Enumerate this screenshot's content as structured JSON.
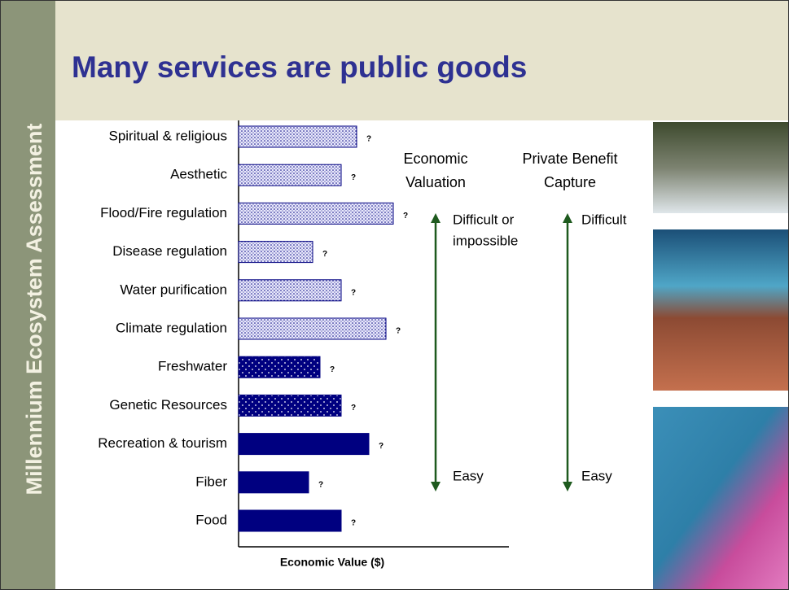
{
  "slide": {
    "title": "Many services are public goods",
    "sidebar": "Millennium Ecosystem Assessment"
  },
  "chart_data": {
    "type": "bar",
    "orientation": "horizontal",
    "categories": [
      "Spiritual & religious",
      "Aesthetic",
      "Flood/Fire regulation",
      "Disease regulation",
      "Water purification",
      "Climate regulation",
      "Freshwater",
      "Genetic Resources",
      "Recreation & tourism",
      "Fiber",
      "Food"
    ],
    "values": [
      145,
      126,
      190,
      91,
      126,
      181,
      100,
      126,
      160,
      86,
      126
    ],
    "value_labels": [
      "?",
      "?",
      "?",
      "?",
      "?",
      "?",
      "?",
      "?",
      "?",
      "?",
      "?"
    ],
    "fills": [
      "light-dotted",
      "light-dotted",
      "light-dotted",
      "light-dotted",
      "light-dotted",
      "light-dotted",
      "dark-dotted",
      "dark-dotted",
      "solid",
      "solid",
      "solid"
    ],
    "color": "#000080",
    "xlim": [
      0,
      332
    ],
    "x_label": "Economic Value ($)",
    "annotations": {
      "valuation_header": [
        "Economic",
        "Valuation"
      ],
      "capture_header": [
        "Private Benefit",
        "Capture"
      ],
      "valuation_top": [
        "Difficult or",
        "impossible"
      ],
      "valuation_bottom": "Easy",
      "capture_top": "Difficult",
      "capture_bottom": "Easy"
    }
  }
}
